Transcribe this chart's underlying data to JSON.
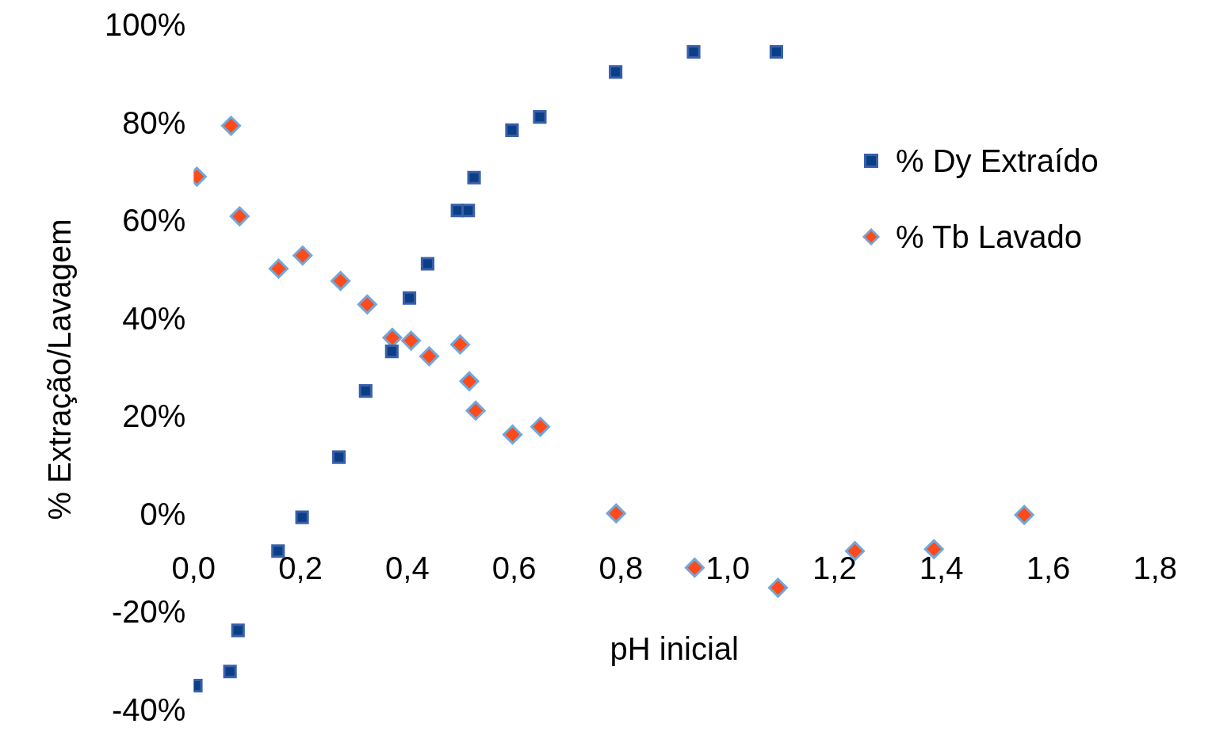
{
  "chart_data": {
    "type": "scatter",
    "xlabel": "pH inicial",
    "ylabel": "% Extração/Lavagem",
    "xlim": [
      0,
      1.8
    ],
    "ylim": [
      -40,
      100
    ],
    "xticks": [
      {
        "value": 0,
        "label": "0,0"
      },
      {
        "value": 0.2,
        "label": "0,2"
      },
      {
        "value": 0.4,
        "label": "0,4"
      },
      {
        "value": 0.6,
        "label": "0,6"
      },
      {
        "value": 0.8,
        "label": "0,8"
      },
      {
        "value": 1.0,
        "label": "1,0"
      },
      {
        "value": 1.2,
        "label": "1,2"
      },
      {
        "value": 1.4,
        "label": "1,4"
      },
      {
        "value": 1.6,
        "label": "1,6"
      },
      {
        "value": 1.8,
        "label": "1,8"
      }
    ],
    "yticks": [
      {
        "value": -40,
        "label": "-40%"
      },
      {
        "value": -20,
        "label": "-20%"
      },
      {
        "value": 0,
        "label": "0%"
      },
      {
        "value": 20,
        "label": "20%"
      },
      {
        "value": 40,
        "label": "40%"
      },
      {
        "value": 60,
        "label": "60%"
      },
      {
        "value": 80,
        "label": "80%"
      },
      {
        "value": 100,
        "label": "100%"
      }
    ],
    "grid": false,
    "legend": "right",
    "series": [
      {
        "name": "% Dy Extraído",
        "color": "#3a5faa",
        "marker": "square",
        "x": [
          0.004,
          0.068,
          0.083,
          0.158,
          0.203,
          0.272,
          0.322,
          0.371,
          0.404,
          0.438,
          0.494,
          0.514,
          0.525,
          0.596,
          0.648,
          0.79,
          0.936,
          1.091
        ],
        "values": [
          -34.6,
          -31.7,
          -23.3,
          -7.1,
          -0.2,
          12.1,
          25.6,
          33.7,
          44.6,
          51.6,
          62.5,
          62.5,
          69.2,
          78.9,
          81.6,
          90.8,
          94.9,
          94.9
        ]
      },
      {
        "name": "% Tb Lavado",
        "color": "#6fa8dc",
        "marker": "diamond",
        "x": [
          0.006,
          0.07,
          0.086,
          0.159,
          0.204,
          0.275,
          0.325,
          0.372,
          0.407,
          0.441,
          0.499,
          0.516,
          0.528,
          0.597,
          0.649,
          0.791,
          0.938,
          1.094,
          1.238,
          1.386,
          1.555
        ],
        "values": [
          69.4,
          79.8,
          61.3,
          50.6,
          53.3,
          48.1,
          43.3,
          36.5,
          35.9,
          32.7,
          35.1,
          27.6,
          21.6,
          16.7,
          18.3,
          0.6,
          -10.5,
          -14.6,
          -7.1,
          -6.7,
          0.3
        ]
      }
    ]
  }
}
